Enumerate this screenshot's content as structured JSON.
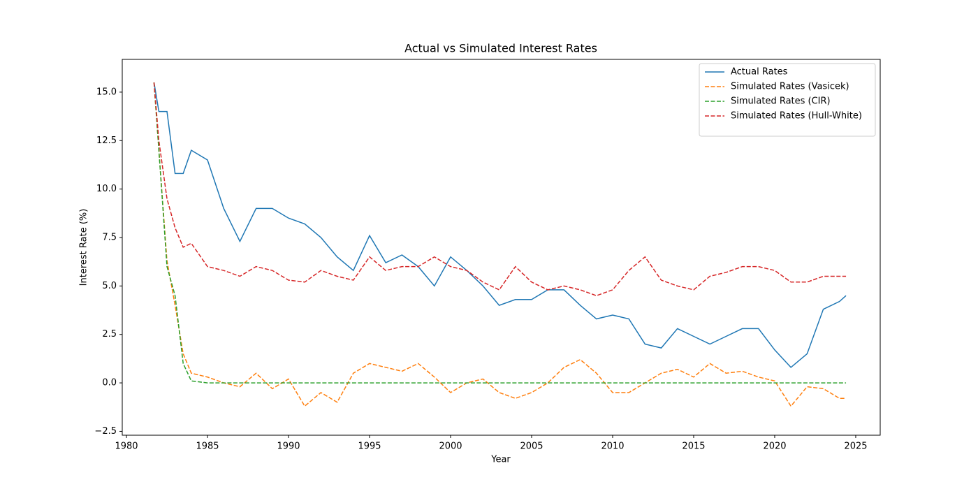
{
  "chart_data": {
    "type": "line",
    "title": "Actual vs Simulated Interest Rates",
    "x_label": "Year",
    "y_label": "Interest Rate (%)",
    "x": [
      1981.7,
      1982,
      1982.5,
      1983,
      1983.5,
      1984,
      1985,
      1986,
      1987,
      1988,
      1989,
      1990,
      1991,
      1992,
      1993,
      1994,
      1995,
      1996,
      1997,
      1998,
      1999,
      2000,
      2001,
      2002,
      2003,
      2004,
      2005,
      2006,
      2007,
      2008,
      2009,
      2010,
      2011,
      2012,
      2013,
      2014,
      2015,
      2016,
      2017,
      2018,
      2019,
      2020,
      2021,
      2022,
      2023,
      2024,
      2024.4
    ],
    "series": [
      {
        "name": "Actual Rates",
        "color": "#1f77b4",
        "linestyle": "solid",
        "values": [
          15.5,
          14.0,
          14.0,
          10.8,
          10.8,
          12.0,
          11.5,
          9.0,
          7.3,
          9.0,
          9.0,
          8.5,
          8.2,
          7.5,
          6.5,
          5.8,
          7.6,
          6.2,
          6.6,
          6.0,
          5.0,
          6.5,
          5.8,
          5.0,
          4.0,
          4.3,
          4.3,
          4.8,
          4.8,
          4.0,
          3.3,
          3.5,
          3.3,
          2.0,
          1.8,
          2.8,
          2.4,
          2.0,
          2.4,
          2.8,
          2.8,
          1.7,
          0.8,
          1.5,
          3.8,
          4.2,
          4.5
        ]
      },
      {
        "name": "Simulated Rates (Vasicek)",
        "color": "#ff7f0e",
        "linestyle": "dashed",
        "values": [
          15.5,
          12,
          6.3,
          4,
          1.5,
          0.5,
          0.3,
          0,
          -0.2,
          0.5,
          -0.3,
          0.2,
          -1.2,
          -0.5,
          -1.0,
          0.5,
          1.0,
          0.8,
          0.6,
          1.0,
          0.3,
          -0.5,
          0.0,
          0.2,
          -0.5,
          -0.8,
          -0.5,
          0.0,
          0.8,
          1.2,
          0.5,
          -0.5,
          -0.5,
          0.0,
          0.5,
          0.7,
          0.3,
          1.0,
          0.5,
          0.6,
          0.3,
          0.1,
          -1.2,
          -0.2,
          -0.3,
          -0.8,
          -0.8
        ]
      },
      {
        "name": "Simulated Rates (CIR)",
        "color": "#2ca02c",
        "linestyle": "dashed",
        "values": [
          15.5,
          12,
          6,
          4.5,
          1,
          0.1,
          0,
          0,
          0,
          0,
          0,
          0,
          0,
          0,
          0,
          0,
          0,
          0,
          0,
          0,
          0,
          0,
          0,
          0,
          0,
          0,
          0,
          0,
          0,
          0,
          0,
          0,
          0,
          0,
          0,
          0,
          0,
          0,
          0,
          0,
          0,
          0,
          0,
          0,
          0,
          0,
          0
        ]
      },
      {
        "name": "Simulated Rates (Hull-White)",
        "color": "#d62728",
        "linestyle": "dashed",
        "values": [
          15.5,
          12.5,
          9.5,
          8,
          7,
          7.2,
          6,
          5.8,
          5.5,
          6,
          5.8,
          5.3,
          5.2,
          5.8,
          5.5,
          5.3,
          6.5,
          5.8,
          6,
          6,
          6.5,
          6.0,
          5.8,
          5.2,
          4.8,
          6.0,
          5.2,
          4.8,
          5.0,
          4.8,
          4.5,
          4.8,
          5.8,
          6.5,
          5.3,
          5.0,
          4.8,
          5.5,
          5.7,
          6.0,
          6.0,
          5.8,
          5.2,
          5.2,
          5.5,
          5.5,
          5.5
        ]
      }
    ],
    "xlim": [
      1979.74,
      2026.51
    ],
    "ylim": [
      -2.7,
      16.69
    ],
    "xticks": [
      1980,
      1985,
      1990,
      1995,
      2000,
      2005,
      2010,
      2015,
      2020,
      2025
    ],
    "yticks": [
      {
        "value": -2.5,
        "label": "−2.5"
      },
      {
        "value": 0,
        "label": "0.0"
      },
      {
        "value": 2.5,
        "label": "2.5"
      },
      {
        "value": 5,
        "label": "5.0"
      },
      {
        "value": 7.5,
        "label": "7.5"
      },
      {
        "value": 10,
        "label": "10.0"
      },
      {
        "value": 12.5,
        "label": "12.5"
      },
      {
        "value": 15,
        "label": "15.0"
      }
    ],
    "grid": false,
    "legend": "upper right"
  }
}
